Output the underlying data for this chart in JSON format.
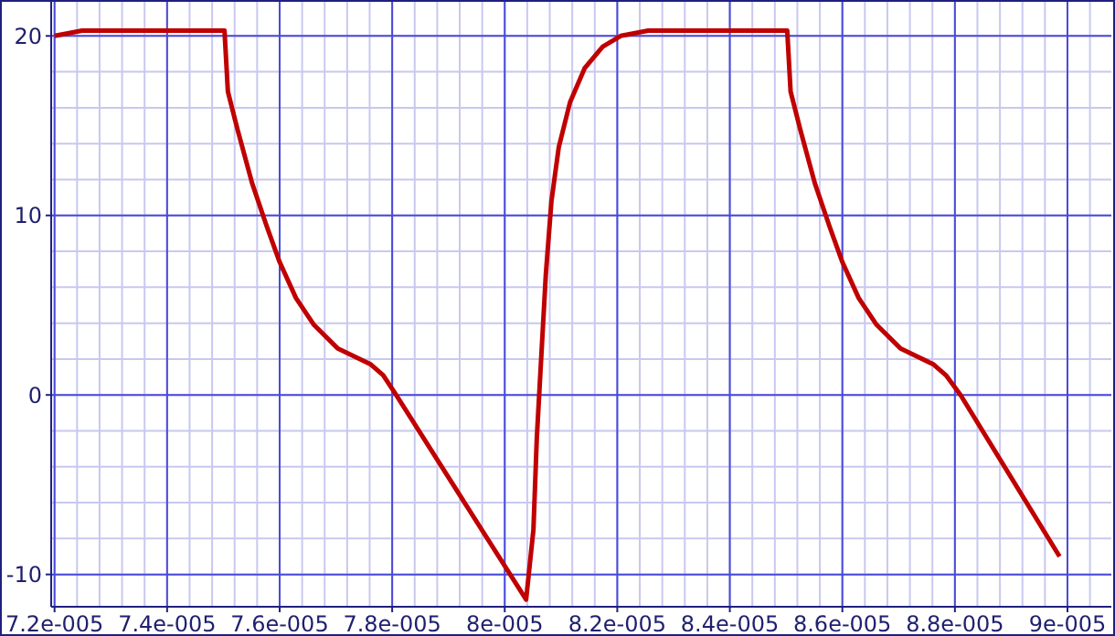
{
  "chart_data": {
    "type": "line",
    "xlim": [
      7.194e-05,
      9.078e-05
    ],
    "ylim": [
      -11.8,
      21.9
    ],
    "xticks": [
      {
        "value": 7.2e-05,
        "label": "7.2e-005"
      },
      {
        "value": 7.4e-05,
        "label": "7.4e-005"
      },
      {
        "value": 7.6e-05,
        "label": "7.6e-005"
      },
      {
        "value": 7.8e-05,
        "label": "7.8e-005"
      },
      {
        "value": 8e-05,
        "label": "8e-005"
      },
      {
        "value": 8.2e-05,
        "label": "8.2e-005"
      },
      {
        "value": 8.4e-05,
        "label": "8.4e-005"
      },
      {
        "value": 8.6e-05,
        "label": "8.6e-005"
      },
      {
        "value": 8.8e-05,
        "label": "8.8e-005"
      },
      {
        "value": 9e-05,
        "label": "9e-005"
      }
    ],
    "yticks": [
      -10,
      0,
      10,
      20
    ],
    "grid": true,
    "legend": false,
    "marker": "none",
    "line_style": "solid",
    "x": [
      7.2e-05,
      7.249e-05,
      7.502e-05,
      7.508e-05,
      7.525e-05,
      7.551e-05,
      7.577e-05,
      7.6e-05,
      7.629e-05,
      7.661e-05,
      7.703e-05,
      7.762e-05,
      7.784e-05,
      7.807e-05,
      8.038e-05,
      8.051e-05,
      8.057e-05,
      8.064e-05,
      8.073e-05,
      8.083e-05,
      8.096e-05,
      8.116e-05,
      8.142e-05,
      8.174e-05,
      8.206e-05,
      8.255e-05,
      8.502e-05,
      8.508e-05,
      8.525e-05,
      8.551e-05,
      8.577e-05,
      8.6e-05,
      8.629e-05,
      8.661e-05,
      8.703e-05,
      8.762e-05,
      8.784e-05,
      8.81e-05,
      8.986e-05
    ],
    "series": [
      {
        "color": "#c00000",
        "values": [
          20.0,
          20.3,
          20.3,
          16.9,
          14.8,
          11.8,
          9.4,
          7.4,
          5.4,
          3.9,
          2.6,
          1.7,
          1.1,
          0,
          -11.4,
          -7.5,
          -2.4,
          1.6,
          6.7,
          10.8,
          13.8,
          16.3,
          18.2,
          19.4,
          20.0,
          20.3,
          20.3,
          16.9,
          14.8,
          11.8,
          9.4,
          7.4,
          5.4,
          3.9,
          2.6,
          1.7,
          1.1,
          0,
          -9.0
        ]
      }
    ]
  }
}
